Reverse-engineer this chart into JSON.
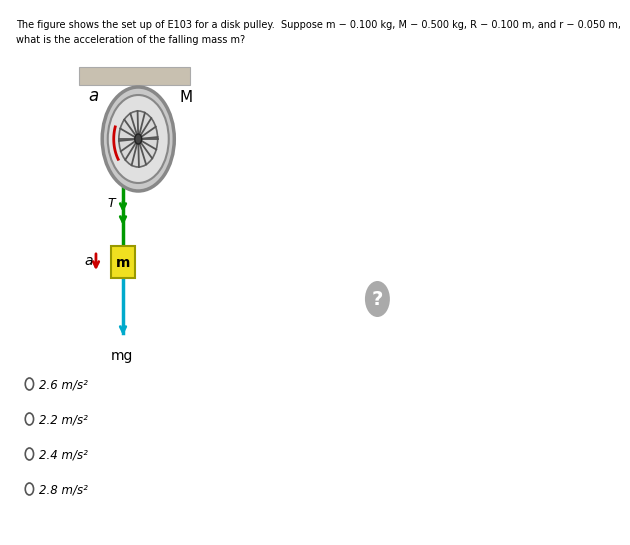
{
  "title_line1": "The figure shows the set up of E103 for a disk pulley.  Suppose m − 0.100 kg, M − 0.500 kg, R − 0.100 m, and r − 0.050 m,",
  "title_line2": "what is the acceleration of the falling mass m?",
  "choices": [
    "2.6 m/s2",
    "2.2 m/s2",
    "2.4 m/s2",
    "2.8 m/s2"
  ],
  "bg_color": "#ffffff",
  "ceiling_color": "#c8c0b0",
  "ceiling_edge": "#aaaaaa",
  "rope_hang_color": "#c8a84b",
  "disk_outer_color": "#c8c8c8",
  "disk_rim_color": "#888888",
  "disk_inner_color": "#f0f0f0",
  "disk_hub_color": "#444444",
  "mass_color": "#f0e020",
  "mass_border": "#888800",
  "arrow_red": "#cc0000",
  "arrow_cyan": "#00aacc",
  "arrow_green": "#009900",
  "dim_arrow_color": "#3399cc",
  "dim_line_color": "#3399cc",
  "text_color": "#000000",
  "radio_border": "#555555",
  "qmark_color": "#aaaaaa"
}
